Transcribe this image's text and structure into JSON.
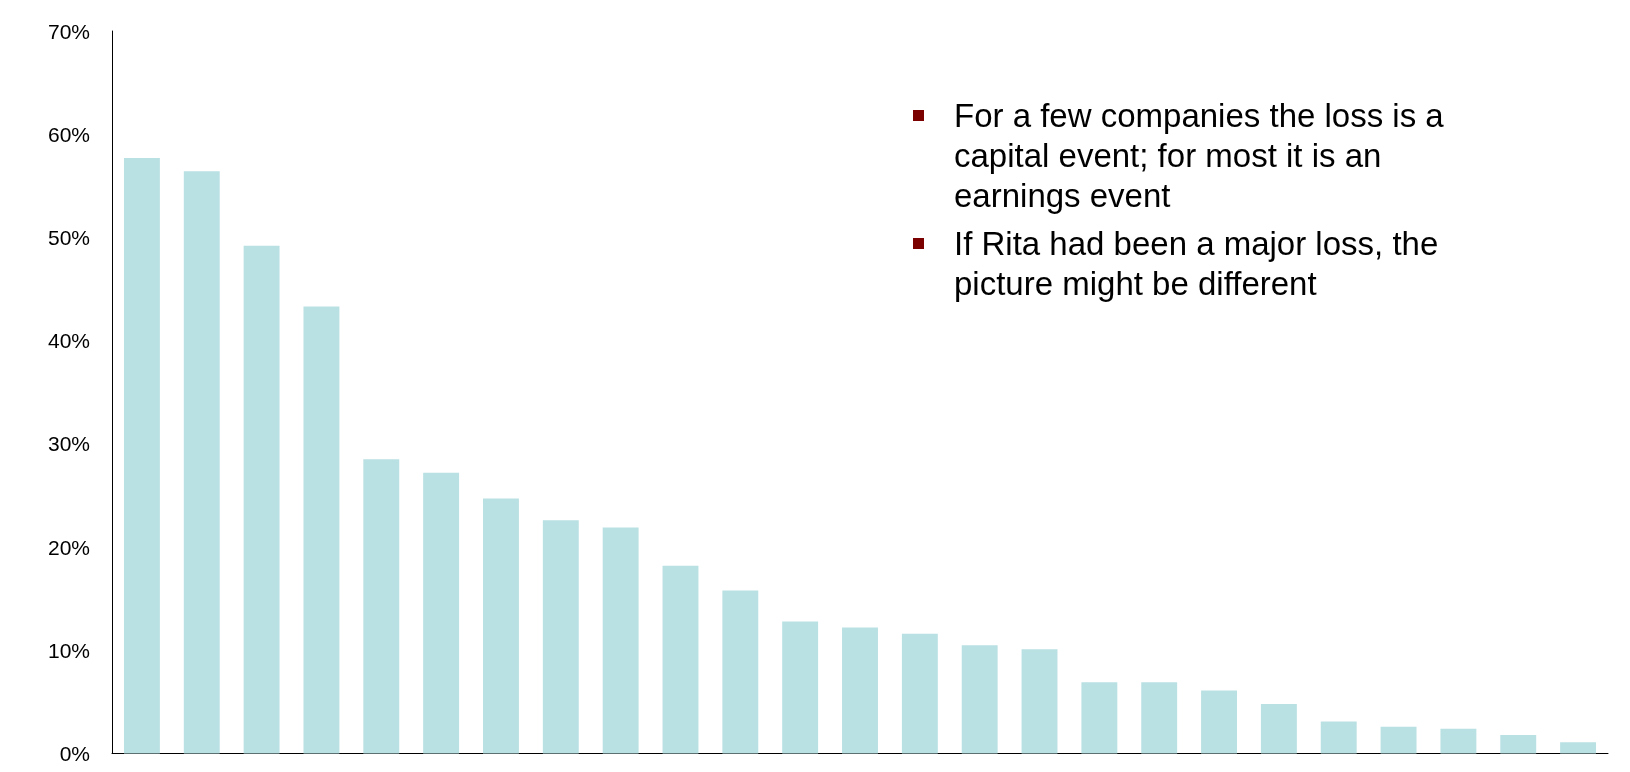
{
  "chart_data": {
    "type": "bar",
    "categories": [
      null,
      null,
      null,
      null,
      null,
      null,
      null,
      null,
      null,
      null,
      null,
      null,
      null,
      null,
      null,
      null,
      null,
      null,
      null,
      null,
      null,
      null,
      null,
      null,
      null
    ],
    "values": [
      57.7,
      56.4,
      49.2,
      43.3,
      28.5,
      27.2,
      24.7,
      22.6,
      21.9,
      18.2,
      15.8,
      12.8,
      12.2,
      11.6,
      10.5,
      10.1,
      6.9,
      6.9,
      6.1,
      4.8,
      3.1,
      2.6,
      2.4,
      1.8,
      1.1
    ],
    "color": "#b9e0e3",
    "ylim": [
      0,
      70
    ],
    "yticks": [
      {
        "value": 0,
        "label": "0%"
      },
      {
        "value": 10,
        "label": "10%"
      },
      {
        "value": 20,
        "label": "20%"
      },
      {
        "value": 30,
        "label": "30%"
      },
      {
        "value": 40,
        "label": "40%"
      },
      {
        "value": 50,
        "label": "50%"
      },
      {
        "value": 60,
        "label": "60%"
      },
      {
        "value": 70,
        "label": "70%"
      }
    ],
    "annotations": [
      "For a few companies the loss is a capital event; for most it is an earnings event",
      "If Rita had been a major loss, the picture might be different"
    ]
  }
}
